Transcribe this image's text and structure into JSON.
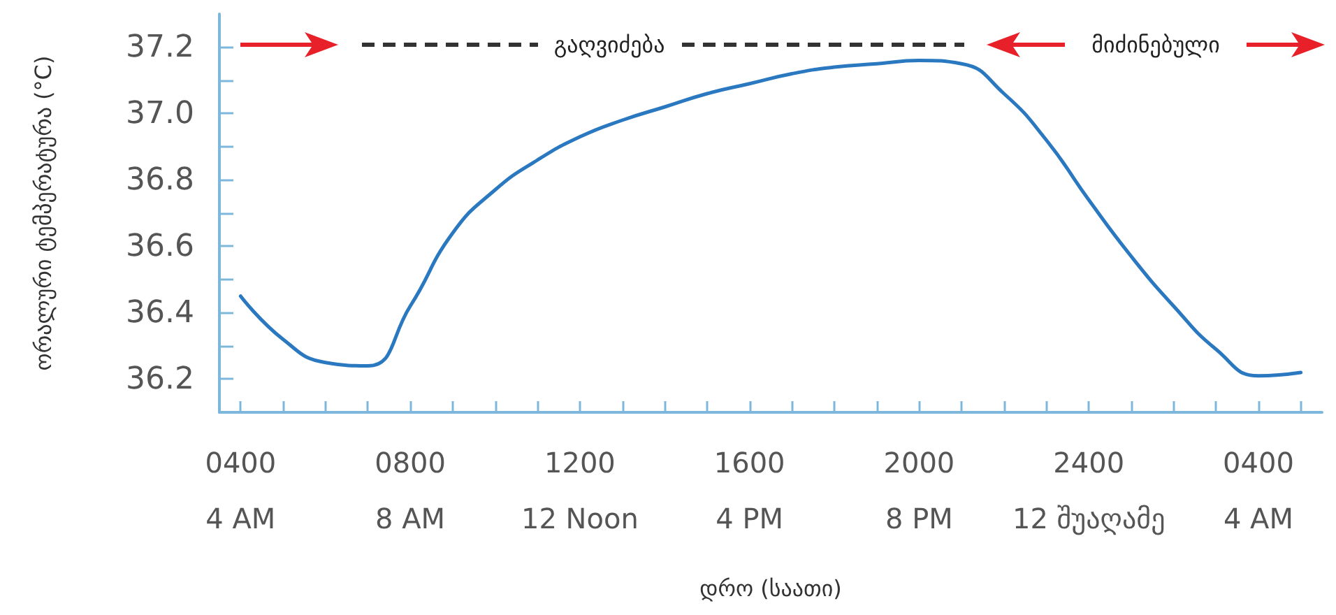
{
  "chart_data": {
    "type": "line",
    "xlabel": "დრო (საათი)",
    "ylabel": "ორალური ტემპერატურა (°C)",
    "categories": [
      "0400\n4 AM",
      null,
      null,
      null,
      "0800\n8 AM",
      null,
      null,
      null,
      "1200\n12 Noon",
      null,
      null,
      null,
      "1600\n4 PM",
      null,
      null,
      null,
      "2000\n8 PM",
      null,
      null,
      null,
      "2400\n12 შუაღამე",
      null,
      null,
      null,
      "0400\n4 AM",
      null
    ],
    "series": [
      {
        "color": "#2a78c0",
        "values": [
          36.45,
          36.32,
          36.25,
          36.24,
          36.42,
          36.64,
          36.77,
          36.86,
          36.93,
          36.98,
          37.02,
          37.06,
          37.09,
          37.12,
          37.14,
          37.15,
          37.16,
          37.15,
          37.06,
          36.92,
          36.74,
          36.57,
          36.42,
          36.29,
          36.21,
          36.22
        ]
      }
    ],
    "ylim": [
      36.1,
      37.3
    ],
    "yticks": [
      {
        "value": 36.2,
        "label": "36.2"
      },
      {
        "value": 36.3,
        "label": null
      },
      {
        "value": 36.4,
        "label": "36.4"
      },
      {
        "value": 36.5,
        "label": null
      },
      {
        "value": 36.6,
        "label": "36.6"
      },
      {
        "value": 36.7,
        "label": null
      },
      {
        "value": 36.8,
        "label": "36.8"
      },
      {
        "value": 36.9,
        "label": null
      },
      {
        "value": 37.0,
        "label": "37.0"
      },
      {
        "value": 37.1,
        "label": null
      },
      {
        "value": 37.2,
        "label": "37.2"
      }
    ],
    "annotations": [
      "გაღვიძება",
      "მიძინებული"
    ],
    "grid": false,
    "marker": "none",
    "line_style": "solid"
  }
}
